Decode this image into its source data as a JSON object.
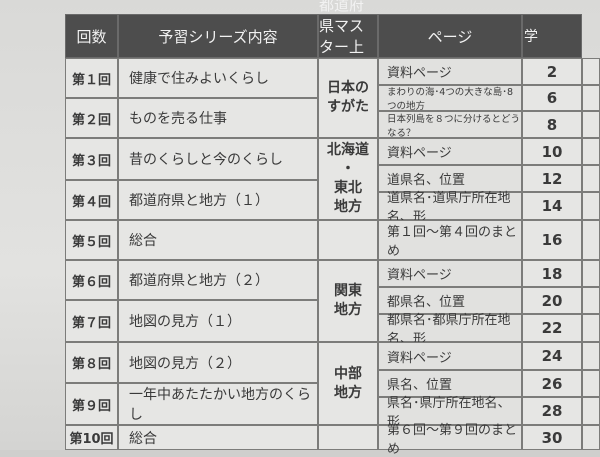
{
  "header": {
    "col1": "回数",
    "col2": "予習シリーズ内容",
    "col3": "都道府県マスター上巻",
    "col4": "ページ",
    "col5": "学"
  },
  "lessons": [
    {
      "num": "第１回",
      "content": "健康で住みよいくらし"
    },
    {
      "num": "第２回",
      "content": "ものを売る仕事"
    },
    {
      "num": "第３回",
      "content": "昔のくらしと今のくらし"
    },
    {
      "num": "第４回",
      "content": "都道府県と地方（１）"
    },
    {
      "num": "第５回",
      "content": "総合"
    },
    {
      "num": "第６回",
      "content": "都道府県と地方（２）"
    },
    {
      "num": "第７回",
      "content": "地図の見方（１）"
    },
    {
      "num": "第８回",
      "content": "地図の見方（２）"
    },
    {
      "num": "第９回",
      "content": "一年中あたたかい地方のくらし"
    },
    {
      "num": "第10回",
      "content": "総合"
    }
  ],
  "regions": [
    "日本の\nすがた",
    "北海道\n・\n東北\n地方",
    "関東\n地方",
    "中部\n地方"
  ],
  "topics": [
    {
      "text": "資料ページ",
      "page": "2"
    },
    {
      "text": "まわりの海･4つの大きな島･8つの地方",
      "page": "6"
    },
    {
      "text": "日本列島を８つに分けるとどうなる？",
      "page": "8"
    },
    {
      "text": "資料ページ",
      "page": "10"
    },
    {
      "text": "道県名、位置",
      "page": "12"
    },
    {
      "text": "道県名･道県庁所在地名、形",
      "page": "14"
    },
    {
      "text": "第１回～第４回のまとめ",
      "page": "16"
    },
    {
      "text": "資料ページ",
      "page": "18"
    },
    {
      "text": "都県名、位置",
      "page": "20"
    },
    {
      "text": "都県名･都県庁所在地名、形",
      "page": "22"
    },
    {
      "text": "資料ページ",
      "page": "24"
    },
    {
      "text": "県名、位置",
      "page": "26"
    },
    {
      "text": "県名･県庁所在地名、形",
      "page": "28"
    },
    {
      "text": "第６回～第９回のまとめ",
      "page": "30"
    }
  ]
}
